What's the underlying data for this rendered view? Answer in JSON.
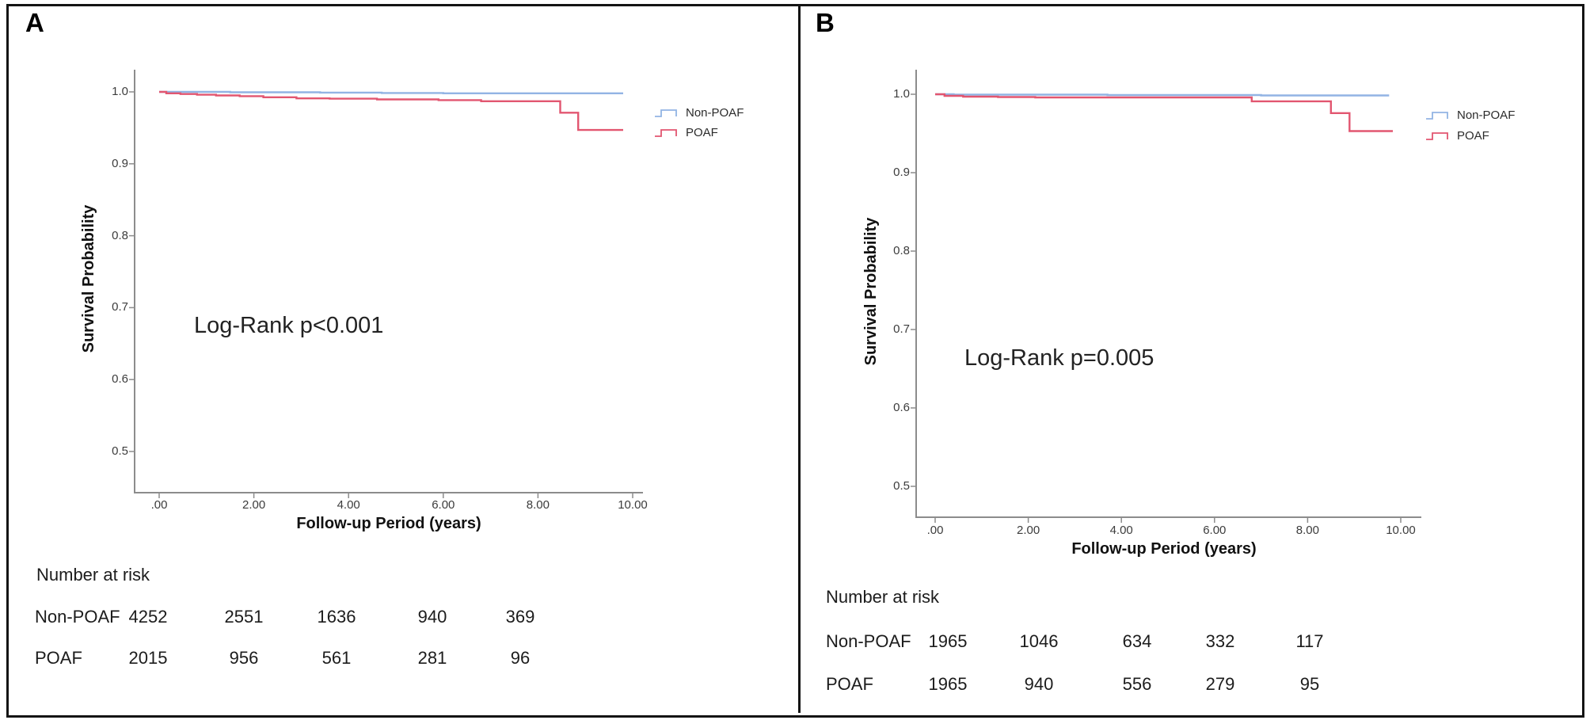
{
  "chart_data": [
    {
      "panel_label": "A",
      "type": "line",
      "chart_kind": "kaplan_meier_step",
      "xlabel": "Follow-up Period (years)",
      "ylabel": "Survival Probability",
      "annotation": "Log-Rank p<0.001",
      "xlim": [
        0,
        10
      ],
      "ylim": [
        0.5,
        1.0
      ],
      "grid": false,
      "xticks": {
        "values": [
          0,
          2,
          4,
          6,
          8,
          10
        ],
        "labels": [
          ".00",
          "2.00",
          "4.00",
          "6.00",
          "8.00",
          "10.00"
        ]
      },
      "yticks": {
        "values": [
          1.0,
          0.9,
          0.8,
          0.7,
          0.6,
          0.5
        ],
        "labels": [
          "1.0",
          "0.9",
          "0.8",
          "0.7",
          "0.6",
          "0.5"
        ]
      },
      "legend": {
        "position": "right",
        "items": [
          {
            "name": "Non-POAF",
            "color": "#92B4E4"
          },
          {
            "name": "POAF",
            "color": "#E25670"
          }
        ]
      },
      "series": [
        {
          "name": "Non-POAF",
          "color": "#92B4E4",
          "steps": [
            [
              0,
              1.0
            ],
            [
              1.5,
              0.9995
            ],
            [
              3.4,
              0.999
            ],
            [
              4.7,
              0.9985
            ],
            [
              6.0,
              0.998
            ],
            [
              9.8,
              0.998
            ]
          ]
        },
        {
          "name": "POAF",
          "color": "#E25670",
          "steps": [
            [
              0,
              1.0
            ],
            [
              0.15,
              0.998
            ],
            [
              0.45,
              0.997
            ],
            [
              0.8,
              0.996
            ],
            [
              1.2,
              0.995
            ],
            [
              1.7,
              0.994
            ],
            [
              2.2,
              0.9925
            ],
            [
              2.9,
              0.991
            ],
            [
              3.6,
              0.9905
            ],
            [
              4.6,
              0.9895
            ],
            [
              5.9,
              0.9885
            ],
            [
              6.8,
              0.987
            ],
            [
              8.47,
              0.971
            ],
            [
              8.85,
              0.947
            ],
            [
              9.8,
              0.947
            ]
          ]
        }
      ],
      "number_at_risk": {
        "title": "Number at risk",
        "time_points": [
          0,
          2,
          4,
          6,
          8
        ],
        "rows": [
          {
            "label": "Non-POAF",
            "counts": [
              "4252",
              "2551",
              "1636",
              "940",
              "369"
            ]
          },
          {
            "label": "POAF",
            "counts": [
              "2015",
              "956",
              "561",
              "281",
              "96"
            ]
          }
        ]
      }
    },
    {
      "panel_label": "B",
      "type": "line",
      "chart_kind": "kaplan_meier_step",
      "xlabel": "Follow-up Period (years)",
      "ylabel": "Survival Probability",
      "annotation": "Log-Rank p=0.005",
      "xlim": [
        0,
        10
      ],
      "ylim": [
        0.5,
        1.0
      ],
      "grid": false,
      "xticks": {
        "values": [
          0,
          2,
          4,
          6,
          8,
          10
        ],
        "labels": [
          ".00",
          "2.00",
          "4.00",
          "6.00",
          "8.00",
          "10.00"
        ]
      },
      "yticks": {
        "values": [
          1.0,
          0.9,
          0.8,
          0.7,
          0.6,
          0.5
        ],
        "labels": [
          "1.0",
          "0.9",
          "0.8",
          "0.7",
          "0.6",
          "0.5"
        ]
      },
      "legend": {
        "position": "right",
        "items": [
          {
            "name": "Non-POAF",
            "color": "#92B4E4"
          },
          {
            "name": "POAF",
            "color": "#E25670"
          }
        ]
      },
      "series": [
        {
          "name": "Non-POAF",
          "color": "#92B4E4",
          "steps": [
            [
              0,
              1.0
            ],
            [
              0.4,
              0.9995
            ],
            [
              3.7,
              0.999
            ],
            [
              7.0,
              0.9985
            ],
            [
              9.75,
              0.9985
            ]
          ]
        },
        {
          "name": "POAF",
          "color": "#E25670",
          "steps": [
            [
              0,
              1.0
            ],
            [
              0.2,
              0.998
            ],
            [
              0.6,
              0.997
            ],
            [
              1.35,
              0.9965
            ],
            [
              2.15,
              0.996
            ],
            [
              6.8,
              0.991
            ],
            [
              8.5,
              0.976
            ],
            [
              8.9,
              0.953
            ],
            [
              9.83,
              0.953
            ]
          ]
        }
      ],
      "number_at_risk": {
        "title": "Number at risk",
        "time_points": [
          0,
          2,
          4,
          6,
          8
        ],
        "rows": [
          {
            "label": "Non-POAF",
            "counts": [
              "1965",
              "1046",
              "634",
              "332",
              "117"
            ]
          },
          {
            "label": "POAF",
            "counts": [
              "1965",
              "940",
              "556",
              "279",
              "95"
            ]
          }
        ]
      }
    }
  ],
  "colors": {
    "non_poaf": "#92B4E4",
    "poaf": "#E25670",
    "axis": "#8C8C8C",
    "border": "#141414",
    "text": "#1C1C1C"
  }
}
